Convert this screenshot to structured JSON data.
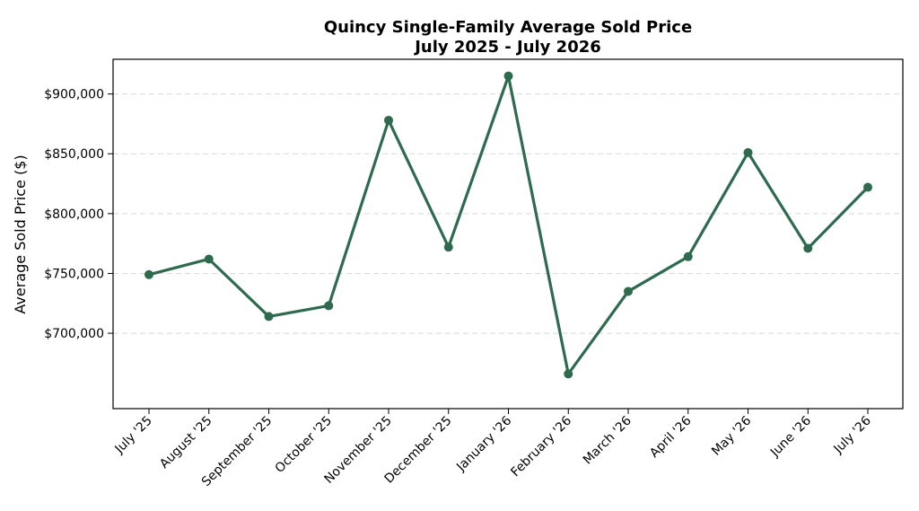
{
  "chart_data": {
    "type": "line",
    "title": "Quincy Single-Family Average Sold Price",
    "subtitle": "July 2025 - July 2026",
    "xlabel": "",
    "ylabel": "Average Sold Price ($)",
    "categories": [
      "July '25",
      "August '25",
      "September '25",
      "October '25",
      "November '25",
      "December '25",
      "January '26",
      "February '26",
      "March '26",
      "April '26",
      "May '26",
      "June '26",
      "July '26"
    ],
    "series": [
      {
        "values": [
          749000,
          762000,
          714000,
          723000,
          878000,
          772000,
          915000,
          666000,
          735000,
          764000,
          851000,
          771000,
          822000
        ]
      }
    ],
    "ylim": [
      637000,
      929000
    ],
    "yticks": [
      700000,
      750000,
      800000,
      850000,
      900000
    ],
    "ytick_labels": [
      "$700,000",
      "$750,000",
      "$800,000",
      "$850,000",
      "$900,000"
    ],
    "grid": "y",
    "color": "#2e6b4e"
  }
}
